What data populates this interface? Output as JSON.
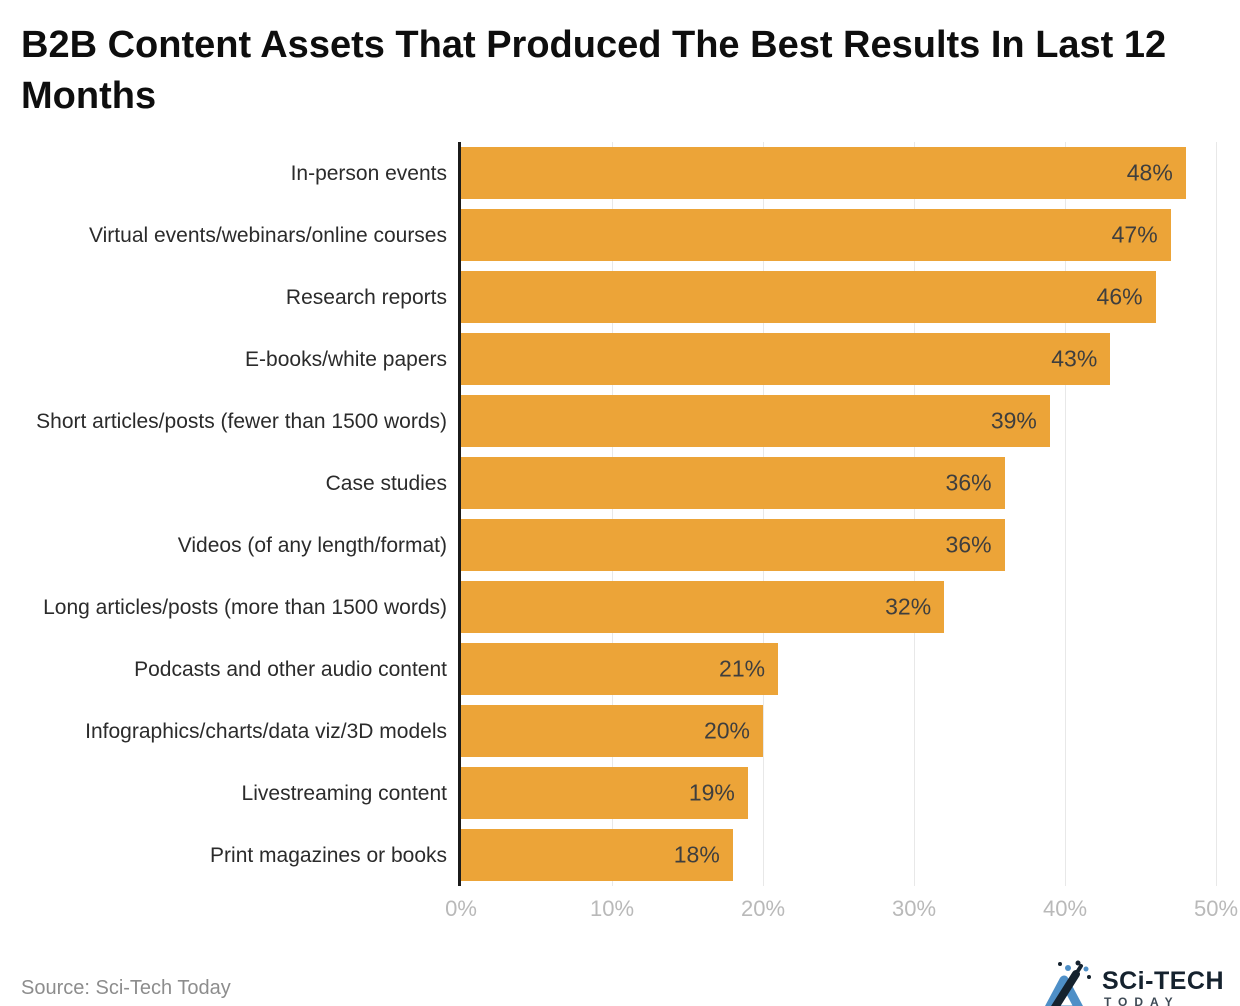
{
  "title": "B2B Content Assets That Produced The Best Results In Last 12 Months",
  "source": "Source: Sci-Tech Today",
  "logo": {
    "line1": "SCi-TECH",
    "line2": "TODAY"
  },
  "colors": {
    "bar": "#eca438",
    "axis": "#1b1b1b",
    "grid": "#e8e8e8",
    "title_text": "#0e0e0e",
    "category_text": "#2b2b2b",
    "value_text": "#3e3e3e",
    "tick_text": "#b9b9b9",
    "source_text": "#8d8d8d",
    "logo_blue": "#4e8fc7",
    "logo_dark": "#15222e"
  },
  "chart_data": {
    "type": "bar",
    "orientation": "horizontal",
    "title": "B2B Content Assets That Produced The Best Results In Last 12 Months",
    "categories": [
      "In-person events",
      "Virtual events/webinars/online courses",
      "Research reports",
      "E-books/white papers",
      "Short articles/posts (fewer than 1500 words)",
      "Case studies",
      "Videos (of any length/format)",
      "Long articles/posts (more than 1500 words)",
      "Podcasts and other audio content",
      "Infographics/charts/data viz/3D models",
      "Livestreaming content",
      "Print magazines or books"
    ],
    "values": [
      48,
      47,
      46,
      43,
      39,
      36,
      36,
      32,
      21,
      20,
      19,
      18
    ],
    "value_suffix": "%",
    "xlabel": "",
    "ylabel": "",
    "xlim": [
      0,
      50
    ],
    "xticks": [
      "0%",
      "10%",
      "20%",
      "30%",
      "40%",
      "50%"
    ],
    "xtick_values": [
      0,
      10,
      20,
      30,
      40,
      50
    ],
    "grid": true,
    "legend": false,
    "data_labels": "inside-end"
  }
}
